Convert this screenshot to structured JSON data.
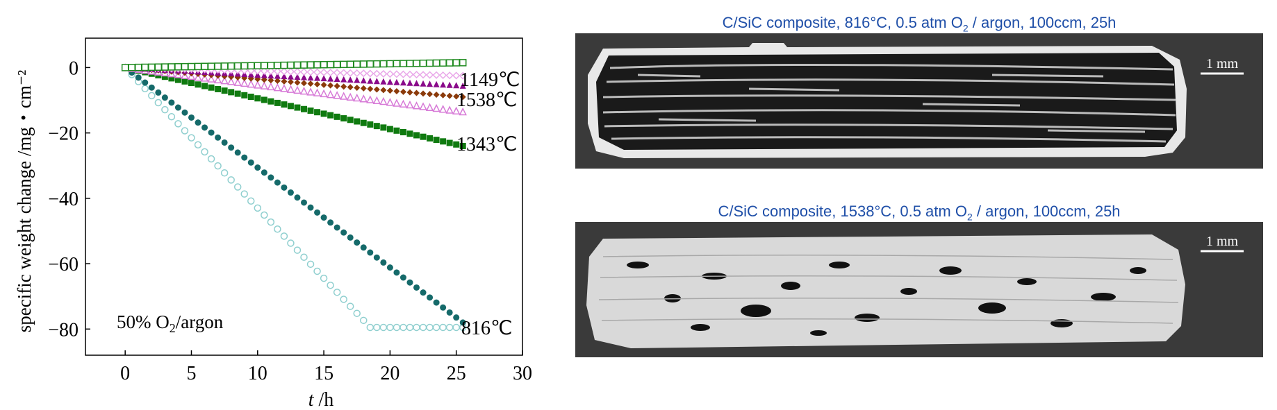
{
  "chart_data": {
    "type": "scatter",
    "xlabel": "t /h",
    "ylabel": "specific weight change /mg・cm⁻²",
    "xlim": [
      -3,
      30
    ],
    "ylim": [
      -88,
      9
    ],
    "xticks": [
      "0",
      "5",
      "10",
      "15",
      "20",
      "25",
      "30"
    ],
    "yticks": [
      "0",
      "−20",
      "−40",
      "−60",
      "−80"
    ],
    "annotation": "50% O₂/argon",
    "curve_labels": [
      "1149℃",
      "1538℃",
      "1343℃",
      "816℃"
    ],
    "grid": false,
    "series": [
      {
        "marker": "open-circle",
        "color": "#8fcfcf",
        "x": [
          0,
          18.5,
          25.5
        ],
        "y": [
          0,
          -79.5,
          -79.5
        ]
      },
      {
        "marker": "filled-circle",
        "color": "#156a6a",
        "x": [
          0,
          25.5
        ],
        "y": [
          0,
          -78
        ]
      },
      {
        "marker": "filled-square",
        "color": "#0f7a0f",
        "x": [
          0,
          25.5
        ],
        "y": [
          0,
          -24
        ]
      },
      {
        "marker": "open-triangle",
        "color": "#d77ad7",
        "x": [
          0,
          25.5
        ],
        "y": [
          0,
          -13.5
        ]
      },
      {
        "marker": "filled-diamond",
        "color": "#8b3a0a",
        "x": [
          0,
          25.5
        ],
        "y": [
          0,
          -9
        ]
      },
      {
        "marker": "filled-triangle",
        "color": "#8a0a8a",
        "x": [
          0,
          25.5
        ],
        "y": [
          0,
          -5.5
        ]
      },
      {
        "marker": "open-diamond",
        "color": "#e9a8e9",
        "x": [
          0,
          25.5
        ],
        "y": [
          0,
          -2.5
        ]
      },
      {
        "marker": "open-square",
        "color": "#1f8a1f",
        "x": [
          0,
          25.5
        ],
        "y": [
          0,
          1.5
        ]
      }
    ]
  },
  "panels": [
    {
      "title": "C/SiC composite, 816°C, 0.5 atm O",
      "sub": "2",
      "title_end": " / argon, 100ccm, 25h",
      "scale": "1 mm"
    },
    {
      "title": "C/SiC composite, 1538°C, 0.5 atm O",
      "sub": "2",
      "title_end": " / argon, 100ccm, 25h",
      "scale": "1 mm"
    }
  ]
}
